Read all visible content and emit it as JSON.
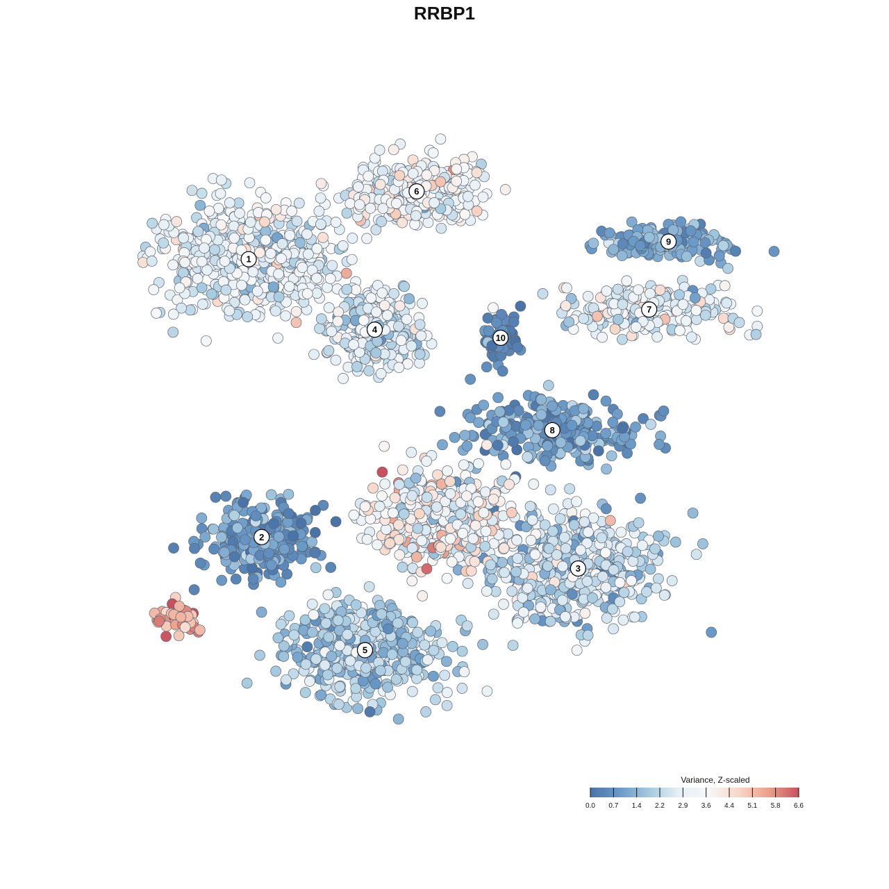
{
  "chart_data": {
    "type": "scatter",
    "title": "RRBP1",
    "legend": {
      "title": "Variance, Z-scaled",
      "placement": "bottom-right",
      "min": 0.0,
      "max": 6.6,
      "ticks": [
        "0.0",
        "0.7",
        "1.4",
        "2.2",
        "2.9",
        "3.6",
        "4.4",
        "5.1",
        "5.8",
        "6.6"
      ],
      "colors": [
        "#4a74a8",
        "#6a9ac8",
        "#a7cbe0",
        "#e7f0f6",
        "#f7f7f7",
        "#f9d6c6",
        "#eb9f8a",
        "#c9505e"
      ]
    },
    "axes_visible": false,
    "grid": false,
    "x_range": [
      0,
      1000
    ],
    "y_range": [
      0,
      1000
    ],
    "clusters": [
      {
        "label": "1",
        "x": 170,
        "y": 792,
        "sx": 118,
        "sy": 78,
        "n": 620,
        "value": 2.9,
        "spread": 0.55
      },
      {
        "label": "6",
        "x": 430,
        "y": 900,
        "sx": 96,
        "sy": 44,
        "n": 360,
        "value": 3.4,
        "spread": 0.6
      },
      {
        "label": "4",
        "x": 365,
        "y": 680,
        "sx": 62,
        "sy": 58,
        "n": 320,
        "value": 2.8,
        "spread": 0.6
      },
      {
        "label": "9",
        "x": 820,
        "y": 820,
        "sx": 88,
        "sy": 26,
        "n": 160,
        "value": 1.3,
        "spread": 0.4
      },
      {
        "label": "7",
        "x": 790,
        "y": 712,
        "sx": 130,
        "sy": 38,
        "n": 240,
        "value": 2.9,
        "spread": 0.7
      },
      {
        "label": "10",
        "x": 560,
        "y": 667,
        "sx": 26,
        "sy": 40,
        "n": 70,
        "value": 0.5,
        "spread": 0.3
      },
      {
        "label": "8",
        "x": 640,
        "y": 520,
        "sx": 130,
        "sy": 44,
        "n": 270,
        "value": 0.9,
        "spread": 0.45
      },
      {
        "label": "2",
        "x": 190,
        "y": 350,
        "sx": 78,
        "sy": 56,
        "n": 240,
        "value": 0.8,
        "spread": 0.45
      },
      {
        "label": "3",
        "x": 680,
        "y": 300,
        "sx": 120,
        "sy": 80,
        "n": 500,
        "value": 2.3,
        "spread": 0.7
      },
      {
        "label": "5",
        "x": 350,
        "y": 170,
        "sx": 110,
        "sy": 72,
        "n": 500,
        "value": 2.0,
        "spread": 0.55
      },
      {
        "label": "",
        "x": 470,
        "y": 380,
        "sx": 96,
        "sy": 72,
        "n": 430,
        "value": 3.6,
        "spread": 0.8
      },
      {
        "label": "",
        "x": 58,
        "y": 220,
        "sx": 32,
        "sy": 22,
        "n": 60,
        "value": 5.6,
        "spread": 0.5
      }
    ]
  }
}
